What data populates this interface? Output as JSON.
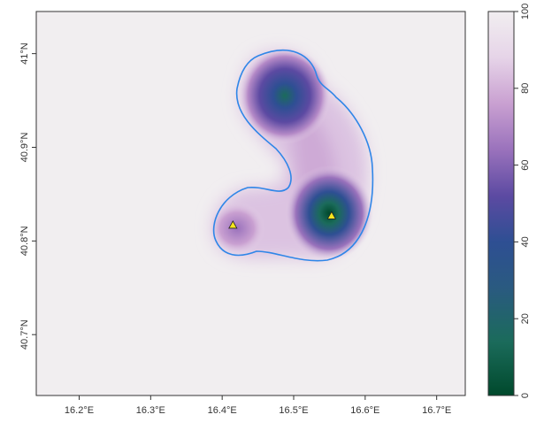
{
  "map": {
    "x_ticks": [
      "16.2°E",
      "16.3°E",
      "16.4°E",
      "16.5°E",
      "16.6°E",
      "16.7°E"
    ],
    "x_tick_values": [
      16.2,
      16.3,
      16.4,
      16.5,
      16.6,
      16.7
    ],
    "y_ticks": [
      "40.7°N",
      "40.8°N",
      "40.9°N",
      "41°N"
    ],
    "y_tick_values": [
      40.7,
      40.8,
      40.9,
      41.0
    ],
    "xlim": [
      16.14,
      16.74
    ],
    "ylim": [
      40.635,
      41.045
    ],
    "points": [
      {
        "name": "point-1",
        "lon": 16.415,
        "lat": 40.817,
        "color": "#f5e61e"
      },
      {
        "name": "point-2",
        "lon": 16.553,
        "lat": 40.827,
        "color": "#f5e61e"
      }
    ],
    "contour_color": "#2f86e8",
    "background_color": "#f1eef0"
  },
  "legend": {
    "ticks": [
      "0",
      "20",
      "40",
      "60",
      "80",
      "100"
    ],
    "tick_values": [
      0,
      20,
      40,
      60,
      80,
      100
    ],
    "range": [
      0,
      100
    ],
    "colors": [
      "#00492c",
      "#1b6b5b",
      "#2e4f93",
      "#5c4aa2",
      "#9a72bc",
      "#c9a0d1",
      "#e6d4e8",
      "#f1eef0"
    ]
  }
}
